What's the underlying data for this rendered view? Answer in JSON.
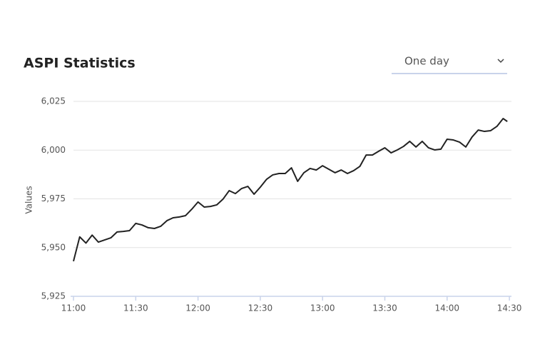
{
  "chart_data": {
    "type": "line",
    "title": "ASPI Statistics",
    "y_label": "Values",
    "period": "One day",
    "x": [
      "11:00",
      "11:03",
      "11:06",
      "11:09",
      "11:12",
      "11:15",
      "11:18",
      "11:21",
      "11:24",
      "11:27",
      "11:30",
      "11:33",
      "11:36",
      "11:39",
      "11:42",
      "11:45",
      "11:48",
      "11:51",
      "11:54",
      "11:57",
      "12:00",
      "12:03",
      "12:06",
      "12:09",
      "12:12",
      "12:15",
      "12:18",
      "12:21",
      "12:24",
      "12:27",
      "12:30",
      "12:33",
      "12:36",
      "12:39",
      "12:42",
      "12:45",
      "12:48",
      "12:51",
      "12:54",
      "12:57",
      "13:00",
      "13:03",
      "13:06",
      "13:09",
      "13:12",
      "13:15",
      "13:18",
      "13:21",
      "13:24",
      "13:27",
      "13:30",
      "13:33",
      "13:36",
      "13:39",
      "13:42",
      "13:45",
      "13:48",
      "13:51",
      "13:54",
      "13:57",
      "14:00",
      "14:03",
      "14:06",
      "14:09",
      "14:12",
      "14:15",
      "14:18",
      "14:21",
      "14:24",
      "14:27",
      "14:29"
    ],
    "values": [
      5943.0,
      5955.5,
      5952.3,
      5956.4,
      5952.8,
      5953.9,
      5955.0,
      5958.0,
      5958.3,
      5958.7,
      5962.4,
      5961.6,
      5960.2,
      5959.8,
      5960.9,
      5963.8,
      5965.3,
      5965.7,
      5966.4,
      5969.7,
      5973.4,
      5970.8,
      5971.1,
      5971.9,
      5974.8,
      5979.2,
      5977.7,
      5980.3,
      5981.4,
      5977.4,
      5981.0,
      5985.0,
      5987.3,
      5988.0,
      5988.0,
      5990.9,
      5984.0,
      5988.4,
      5990.6,
      5989.8,
      5992.0,
      5990.2,
      5988.4,
      5989.8,
      5988.0,
      5989.5,
      5991.7,
      5997.5,
      5997.5,
      5999.4,
      6001.2,
      5998.6,
      6000.1,
      6001.9,
      6004.5,
      6001.6,
      6004.5,
      6001.2,
      6000.1,
      6000.5,
      6005.6,
      6005.2,
      6004.1,
      6001.6,
      6006.7,
      6010.3,
      6009.6,
      6010.0,
      6012.2,
      6016.2,
      6014.7
    ],
    "color": "#222222",
    "xlim": [
      "11:00",
      "14:31"
    ],
    "xticks": [
      "11:00",
      "11:30",
      "12:00",
      "12:30",
      "13:00",
      "13:30",
      "14:00",
      "14:30"
    ],
    "ylim": [
      5925,
      6025
    ],
    "yticks": [
      {
        "value": 5925,
        "label": "5,925"
      },
      {
        "value": 5950,
        "label": "5,950"
      },
      {
        "value": 5975,
        "label": "5,975"
      },
      {
        "value": 6000,
        "label": "6,000"
      },
      {
        "value": 6025,
        "label": "6,025"
      }
    ],
    "grid": true
  }
}
